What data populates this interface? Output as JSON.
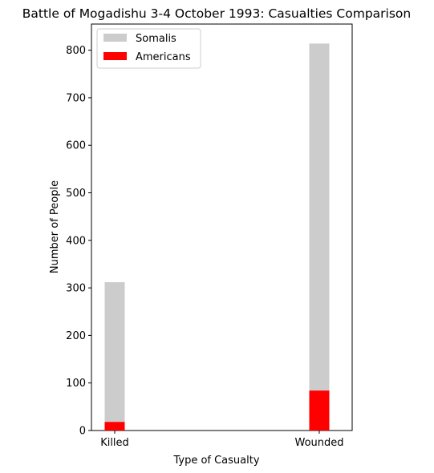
{
  "chart_data": {
    "type": "bar",
    "title": "Battle of Mogadishu 3-4 October 1993: Casualties Comparison",
    "xlabel": "Type of Casualty",
    "ylabel": "Number of People",
    "categories": [
      "Killed",
      "Wounded"
    ],
    "ylim": [
      0,
      855
    ],
    "yticks": [
      0,
      100,
      200,
      300,
      400,
      500,
      600,
      700,
      800
    ],
    "grid": false,
    "legend_position": "top-left",
    "series": [
      {
        "name": "Somalis",
        "values": [
          312,
          814
        ],
        "color": "#cccccc"
      },
      {
        "name": "Americans",
        "values": [
          18,
          84
        ],
        "color": "#ff0000"
      }
    ]
  }
}
